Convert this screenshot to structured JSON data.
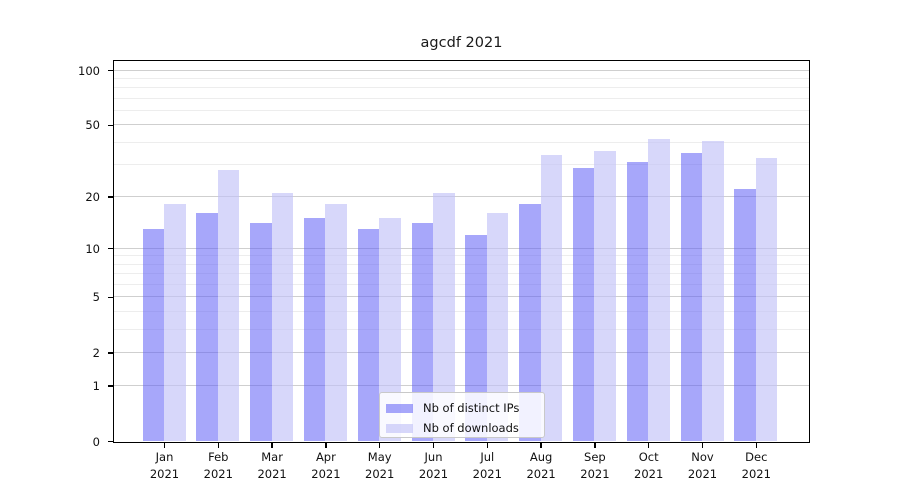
{
  "chart_data": {
    "type": "bar",
    "title": "agcdf 2021",
    "x_categories": [
      {
        "month": "Jan",
        "year": "2021"
      },
      {
        "month": "Feb",
        "year": "2021"
      },
      {
        "month": "Mar",
        "year": "2021"
      },
      {
        "month": "Apr",
        "year": "2021"
      },
      {
        "month": "May",
        "year": "2021"
      },
      {
        "month": "Jun",
        "year": "2021"
      },
      {
        "month": "Jul",
        "year": "2021"
      },
      {
        "month": "Aug",
        "year": "2021"
      },
      {
        "month": "Sep",
        "year": "2021"
      },
      {
        "month": "Oct",
        "year": "2021"
      },
      {
        "month": "Nov",
        "year": "2021"
      },
      {
        "month": "Dec",
        "year": "2021"
      }
    ],
    "series": [
      {
        "name": "Nb of distinct IPs",
        "color": "rgba(95,95,245,0.55)",
        "values": [
          13,
          16,
          14,
          15,
          13,
          14,
          12,
          18,
          29,
          31,
          35,
          22
        ]
      },
      {
        "name": "Nb of downloads",
        "color": "rgba(193,193,247,0.65)",
        "values": [
          18,
          28,
          21,
          18,
          15,
          21,
          16,
          34,
          36,
          42,
          41,
          33
        ]
      }
    ],
    "y_axis": {
      "scale": "log1p",
      "major_ticks": [
        0,
        1,
        2,
        5,
        10,
        20,
        50,
        100
      ],
      "minor_ticks": [
        3,
        4,
        6,
        7,
        8,
        9,
        30,
        40,
        60,
        70,
        80,
        90
      ],
      "range_top_value": 116
    },
    "legend": {
      "position": "lower-center",
      "entries": [
        "Nb of distinct IPs",
        "Nb of downloads"
      ]
    },
    "grid": true
  },
  "colors": {
    "major_grid": "#cfcfcf",
    "minor_grid": "#ededed",
    "spine": "#000000",
    "bar_distinct_ips": "rgba(95,95,245,0.55)",
    "bar_downloads": "rgba(193,193,247,0.65)",
    "text": "#1a1a1a"
  }
}
